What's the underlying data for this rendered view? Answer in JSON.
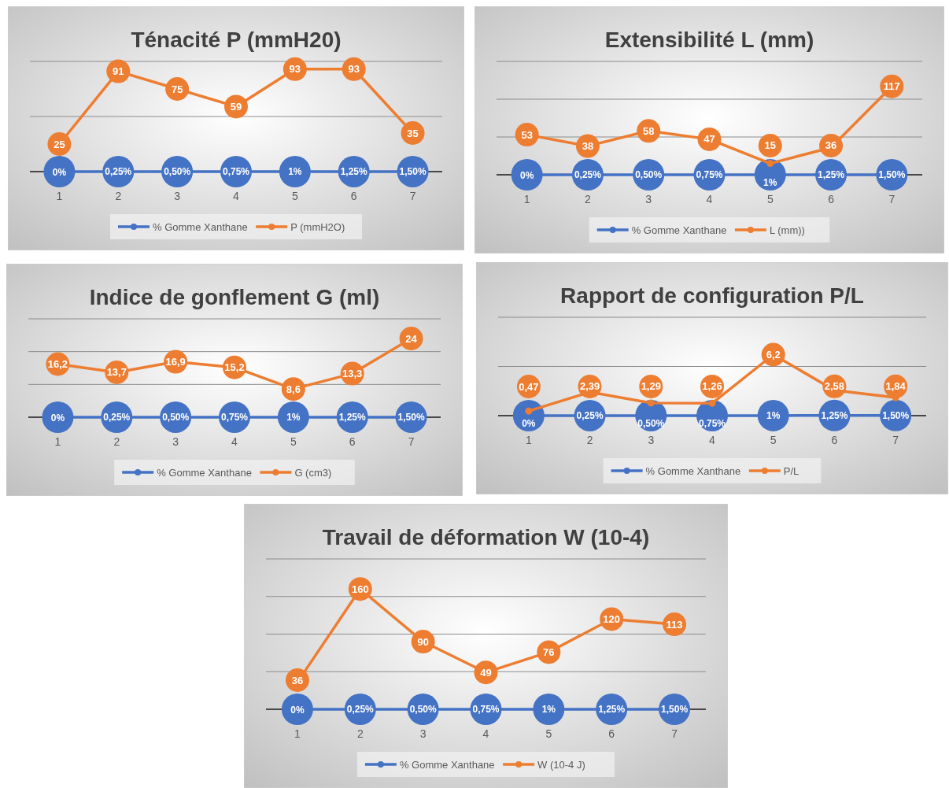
{
  "chart_data": [
    {
      "type": "line",
      "title": "Ténacité P (mmH20)",
      "categories": [
        "1",
        "2",
        "3",
        "4",
        "5",
        "6",
        "7"
      ],
      "series": [
        {
          "name": "% Gomme Xanthane",
          "color": "#4472c4",
          "values": [
            0,
            0.0025,
            0.005,
            0.0075,
            0.01,
            0.0125,
            0.015
          ],
          "value_labels": [
            "0%",
            "0,25%",
            "0,50%",
            "0,75%",
            "1%",
            "1,25%",
            "1,50%"
          ]
        },
        {
          "name": "P (mmH2O)",
          "color": "#ed7d31",
          "values": [
            25,
            91,
            75,
            59,
            93,
            93,
            35
          ],
          "value_labels": [
            "25",
            "91",
            "75",
            "59",
            "93",
            "93",
            "35"
          ]
        }
      ],
      "ylim": [
        0,
        100
      ],
      "yticks": [
        {
          "value": 0,
          "label": null
        },
        {
          "value": 50,
          "label": null
        },
        {
          "value": 100,
          "label": null
        }
      ],
      "tick_labels": "x",
      "grid": "y",
      "legend": "bottom",
      "marker": "circle"
    },
    {
      "type": "line",
      "title": "Extensibilité L (mm)",
      "categories": [
        "1",
        "2",
        "3",
        "4",
        "5",
        "6",
        "7"
      ],
      "series": [
        {
          "name": "% Gomme Xanthane",
          "color": "#4472c4",
          "values": [
            0,
            0.0025,
            0.005,
            0.0075,
            0.01,
            0.0125,
            0.015
          ],
          "value_labels": [
            "0%",
            "0,25%",
            "0,50%",
            "0,75%",
            "1%",
            "1,25%",
            "1,50%"
          ]
        },
        {
          "name": "L (mm))",
          "color": "#ed7d31",
          "values": [
            53,
            38,
            58,
            47,
            15,
            36,
            117
          ],
          "value_labels": [
            "53",
            "38",
            "58",
            "47",
            "15",
            "36",
            "117"
          ]
        }
      ],
      "ylim": [
        0,
        150
      ],
      "yticks": [
        {
          "value": 0,
          "label": null
        },
        {
          "value": 50,
          "label": null
        },
        {
          "value": 100,
          "label": null
        },
        {
          "value": 150,
          "label": null
        }
      ],
      "tick_labels": "x",
      "grid": "y",
      "legend": "bottom",
      "marker": "circle"
    },
    {
      "type": "line",
      "title": "Indice de gonflement G (ml)",
      "categories": [
        "1",
        "2",
        "3",
        "4",
        "5",
        "6",
        "7"
      ],
      "series": [
        {
          "name": "% Gomme Xanthane",
          "color": "#4472c4",
          "values": [
            0,
            0.0025,
            0.005,
            0.0075,
            0.01,
            0.0125,
            0.015
          ],
          "value_labels": [
            "0%",
            "0,25%",
            "0,50%",
            "0,75%",
            "1%",
            "1,25%",
            "1,50%"
          ]
        },
        {
          "name": "G (cm3)",
          "color": "#ed7d31",
          "values": [
            16.2,
            13.7,
            16.9,
            15.2,
            8.6,
            13.3,
            24
          ],
          "value_labels": [
            "16,2",
            "13,7",
            "16,9",
            "15,2",
            "8,6",
            "13,3",
            "24"
          ]
        }
      ],
      "ylim": [
        0,
        30
      ],
      "yticks": [
        {
          "value": 0,
          "label": null
        },
        {
          "value": 10,
          "label": null
        },
        {
          "value": 20,
          "label": null
        },
        {
          "value": 30,
          "label": null
        }
      ],
      "tick_labels": "x",
      "grid": "y",
      "legend": "bottom",
      "marker": "circle"
    },
    {
      "type": "line",
      "title": "Rapport de configuration P/L",
      "categories": [
        "1",
        "2",
        "3",
        "4",
        "5",
        "6",
        "7"
      ],
      "series": [
        {
          "name": "% Gomme Xanthane",
          "color": "#4472c4",
          "values": [
            0,
            0.0025,
            0.005,
            0.0075,
            0.01,
            0.0125,
            0.015
          ],
          "value_labels": [
            "0%",
            "0,25%",
            "0,50%",
            "0,75%",
            "1%",
            "1,25%",
            "1,50%"
          ]
        },
        {
          "name": "P/L",
          "color": "#ed7d31",
          "values": [
            0.47,
            2.39,
            1.29,
            1.26,
            6.2,
            2.58,
            1.84
          ],
          "value_labels": [
            "0,47",
            "2,39",
            "1,29",
            "1,26",
            "6,2",
            "2,58",
            "1,84"
          ]
        }
      ],
      "ylim": [
        0,
        10
      ],
      "yticks": [
        {
          "value": 0,
          "label": null
        },
        {
          "value": 5,
          "label": null
        },
        {
          "value": 10,
          "label": null
        }
      ],
      "tick_labels": "x",
      "grid": "y",
      "legend": "bottom",
      "marker": "circle"
    },
    {
      "type": "line",
      "title": "Travail de déformation W (10-4)",
      "categories": [
        "1",
        "2",
        "3",
        "4",
        "5",
        "6",
        "7"
      ],
      "series": [
        {
          "name": "% Gomme Xanthane",
          "color": "#4472c4",
          "values": [
            0,
            0.0025,
            0.005,
            0.0075,
            0.01,
            0.0125,
            0.015
          ],
          "value_labels": [
            "0%",
            "0,25%",
            "0,50%",
            "0,75%",
            "1%",
            "1,25%",
            "1,50%"
          ]
        },
        {
          "name": "W (10-4 J)",
          "color": "#ed7d31",
          "values": [
            36,
            160,
            90,
            49,
            76,
            120,
            113
          ],
          "value_labels": [
            "36",
            "160",
            "90",
            "49",
            "76",
            "120",
            "113"
          ]
        }
      ],
      "ylim": [
        0,
        200
      ],
      "yticks": [
        {
          "value": 0,
          "label": null
        },
        {
          "value": 50,
          "label": null
        },
        {
          "value": 100,
          "label": null
        },
        {
          "value": 150,
          "label": null
        },
        {
          "value": 200,
          "label": null
        }
      ],
      "tick_labels": "x",
      "grid": "y",
      "legend": "bottom",
      "marker": "circle"
    }
  ]
}
